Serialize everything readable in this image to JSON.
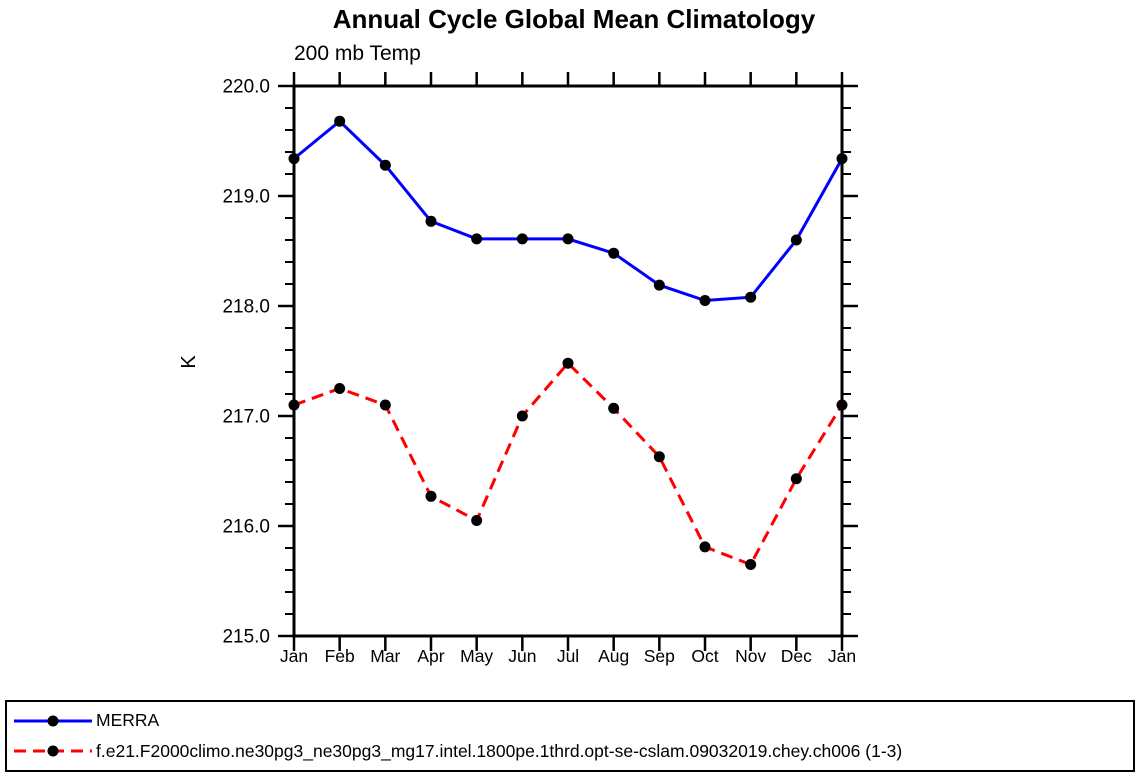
{
  "figure": {
    "title": "Annual Cycle Global Mean Climatology",
    "subtitle": "200 mb Temp",
    "y_axis_title": "K",
    "background_color": "#ffffff",
    "axis_color": "#000000"
  },
  "chart_data": {
    "type": "line",
    "title": "Annual Cycle Global Mean Climatology",
    "subtitle": "200 mb Temp",
    "xlabel": "",
    "ylabel": "K",
    "ylim": [
      215.0,
      220.0
    ],
    "ytick_major_step": 1.0,
    "ytick_minor_step": 0.2,
    "ytick_labels": [
      "215.0",
      "216.0",
      "217.0",
      "218.0",
      "219.0",
      "220.0"
    ],
    "grid": false,
    "legend_position": "bottom box, outside plot",
    "categories": [
      "Jan",
      "Feb",
      "Mar",
      "Apr",
      "May",
      "Jun",
      "Jul",
      "Aug",
      "Sep",
      "Oct",
      "Nov",
      "Dec",
      "Jan"
    ],
    "series": [
      {
        "name": "MERRA",
        "color": "#0000ff",
        "line_style": "solid",
        "marker": "filled-circle",
        "marker_color": "#000000",
        "values": [
          219.34,
          219.68,
          219.28,
          218.77,
          218.61,
          218.61,
          218.61,
          218.48,
          218.19,
          218.05,
          218.08,
          218.6,
          219.34
        ]
      },
      {
        "name": "f.e21.F2000climo.ne30pg3_ne30pg3_mg17.intel.1800pe.1thrd.opt-se-cslam.09032019.chey.ch006 (1-3)",
        "color": "#ff0000",
        "line_style": "dashed",
        "marker": "filled-circle",
        "marker_color": "#000000",
        "values": [
          217.1,
          217.25,
          217.1,
          216.27,
          216.05,
          217.0,
          217.48,
          217.07,
          216.63,
          215.81,
          215.65,
          216.43,
          217.1
        ]
      }
    ]
  }
}
